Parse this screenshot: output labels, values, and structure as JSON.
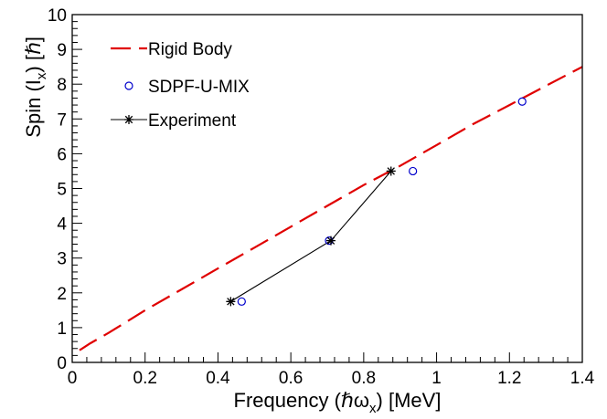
{
  "chart_data": {
    "type": "line",
    "xlabel": "Frequency (ℏωx) [MeV]",
    "xlabel_parts": {
      "pre": "Frequency (ℏω",
      "sub": "x",
      "post": ") [MeV]"
    },
    "ylabel": "Spin (Ix) [ℏ]",
    "ylabel_parts": {
      "pre": "Spin (I",
      "sub": "x",
      "post": ") [ℏ]"
    },
    "xlim": [
      0,
      1.4
    ],
    "ylim": [
      0,
      10
    ],
    "x_ticks": [
      "0",
      "0.2",
      "0.4",
      "0.6",
      "0.8",
      "1",
      "1.2",
      "1.4"
    ],
    "x_tick_values": [
      0,
      0.2,
      0.4,
      0.6,
      0.8,
      1.0,
      1.2,
      1.4
    ],
    "y_ticks": [
      "0",
      "1",
      "2",
      "3",
      "4",
      "5",
      "6",
      "7",
      "8",
      "9",
      "10"
    ],
    "y_tick_values": [
      0,
      1,
      2,
      3,
      4,
      5,
      6,
      7,
      8,
      9,
      10
    ],
    "grid": false,
    "legend_position": "top-left",
    "series": [
      {
        "name": "Rigid Body",
        "style": "dashed-line",
        "color": "#e00000",
        "x": [
          0.02,
          0.05,
          0.1,
          0.2,
          0.3,
          0.4,
          0.5,
          0.6,
          0.7,
          0.8,
          0.9,
          1.0,
          1.1,
          1.2,
          1.3,
          1.4
        ],
        "y": [
          0.35,
          0.55,
          0.85,
          1.5,
          2.1,
          2.7,
          3.3,
          3.9,
          4.5,
          5.1,
          5.65,
          6.25,
          6.85,
          7.4,
          7.95,
          8.5
        ]
      },
      {
        "name": "SDPF-U-MIX",
        "style": "open-circle",
        "color": "#0000cc",
        "x": [
          0.465,
          0.705,
          0.935,
          1.235
        ],
        "y": [
          1.75,
          3.5,
          5.5,
          7.5
        ]
      },
      {
        "name": "Experiment",
        "style": "star-line",
        "color": "#000000",
        "x": [
          0.435,
          0.71,
          0.875
        ],
        "y": [
          1.75,
          3.5,
          5.5
        ]
      }
    ]
  }
}
